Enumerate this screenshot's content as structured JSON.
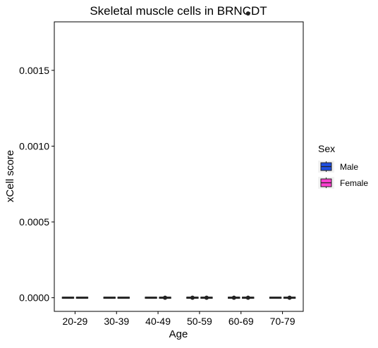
{
  "chart_data": {
    "type": "box",
    "title": "Skeletal muscle cells in BRNCDT",
    "xlabel": "Age",
    "ylabel": "xCell score",
    "categories": [
      "20-29",
      "30-39",
      "40-49",
      "50-59",
      "60-69",
      "70-79"
    ],
    "ylim": [
      -9e-05,
      0.00182
    ],
    "yticks": [
      0.0,
      0.0005,
      0.001,
      0.0015
    ],
    "ytick_labels": [
      "0.0000",
      "0.0005",
      "0.0010",
      "0.0015"
    ],
    "grid": false,
    "legend": {
      "title": "Sex",
      "position": "right"
    },
    "series": [
      {
        "name": "Male",
        "color": "#1f4fe0",
        "boxes": [
          {
            "min": 0,
            "q1": 0,
            "median": 0,
            "q3": 0,
            "max": 0
          },
          {
            "min": 0,
            "q1": 0,
            "median": 0,
            "q3": 0,
            "max": 0
          },
          {
            "min": 0,
            "q1": 0,
            "median": 0,
            "q3": 0,
            "max": 0
          },
          {
            "min": 0,
            "q1": 0,
            "median": 0,
            "q3": 0,
            "max": 0
          },
          {
            "min": 0,
            "q1": 0,
            "median": 0,
            "q3": 0,
            "max": 0
          },
          {
            "min": 0,
            "q1": 0,
            "median": 0,
            "q3": 0,
            "max": 0
          }
        ],
        "outliers": [
          [],
          [],
          [],
          [
            0
          ],
          [
            0
          ],
          []
        ]
      },
      {
        "name": "Female",
        "color": "#ff40d0",
        "boxes": [
          {
            "min": 0,
            "q1": 0,
            "median": 0,
            "q3": 0,
            "max": 0
          },
          {
            "min": 0,
            "q1": 0,
            "median": 0,
            "q3": 0,
            "max": 0
          },
          {
            "min": 0,
            "q1": 0,
            "median": 0,
            "q3": 0,
            "max": 0
          },
          {
            "min": 0,
            "q1": 0,
            "median": 0,
            "q3": 0,
            "max": 0
          },
          {
            "min": 0,
            "q1": 0,
            "median": 0,
            "q3": 0,
            "max": 0
          },
          {
            "min": 0,
            "q1": 0,
            "median": 0,
            "q3": 0,
            "max": 0
          }
        ],
        "outliers": [
          [],
          [],
          [
            0
          ],
          [
            0
          ],
          [
            0,
            0.001875
          ],
          [
            0
          ]
        ]
      }
    ]
  }
}
